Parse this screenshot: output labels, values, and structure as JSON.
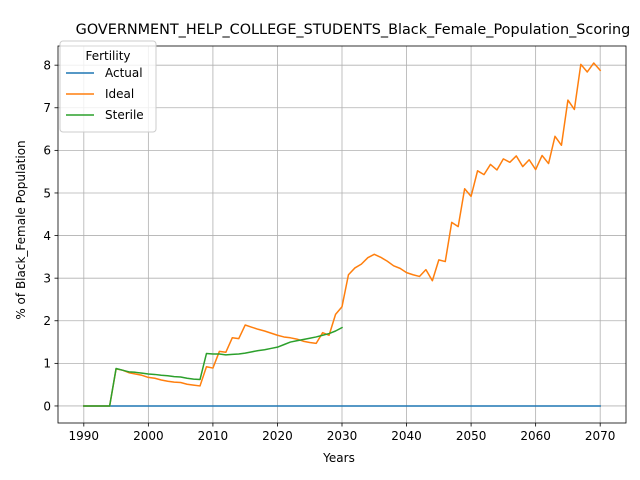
{
  "chart_data": {
    "type": "line",
    "title": "GOVERNMENT_HELP_COLLEGE_STUDENTS_Black_Female_Population_Scoring",
    "xlabel": "Years",
    "ylabel": "% of Black_Female Population",
    "xlim": [
      1986,
      2074
    ],
    "ylim": [
      -0.4,
      8.45
    ],
    "xticks": [
      1990,
      2000,
      2010,
      2020,
      2030,
      2040,
      2050,
      2060,
      2070
    ],
    "yticks": [
      0,
      1,
      2,
      3,
      4,
      5,
      6,
      7,
      8
    ],
    "grid": true,
    "legend": {
      "title": "Fertility",
      "location": "top-left"
    },
    "series": [
      {
        "name": "Actual",
        "color": "#1f77b4",
        "x": [
          1990,
          2070
        ],
        "y": [
          0,
          0
        ]
      },
      {
        "name": "Ideal",
        "color": "#ff7f0e",
        "x": [
          1990,
          1991,
          1992,
          1993,
          1994,
          1995,
          1996,
          1997,
          1998,
          1999,
          2000,
          2001,
          2002,
          2003,
          2004,
          2005,
          2006,
          2007,
          2008,
          2009,
          2010,
          2011,
          2012,
          2013,
          2014,
          2015,
          2016,
          2017,
          2018,
          2019,
          2020,
          2021,
          2022,
          2023,
          2024,
          2025,
          2026,
          2027,
          2028,
          2029,
          2030,
          2031,
          2032,
          2033,
          2034,
          2035,
          2036,
          2037,
          2038,
          2039,
          2040,
          2041,
          2042,
          2043,
          2044,
          2045,
          2046,
          2047,
          2048,
          2049,
          2050,
          2051,
          2052,
          2053,
          2054,
          2055,
          2056,
          2057,
          2058,
          2059,
          2060,
          2061,
          2062,
          2063,
          2064,
          2065,
          2066,
          2067,
          2068,
          2069,
          2070
        ],
        "y": [
          0,
          0,
          0,
          0,
          0,
          0.87,
          0.84,
          0.78,
          0.75,
          0.72,
          0.67,
          0.65,
          0.61,
          0.58,
          0.56,
          0.55,
          0.51,
          0.49,
          0.47,
          0.92,
          0.89,
          1.28,
          1.26,
          1.6,
          1.58,
          1.9,
          1.85,
          1.8,
          1.76,
          1.71,
          1.66,
          1.62,
          1.6,
          1.57,
          1.52,
          1.49,
          1.47,
          1.72,
          1.66,
          2.15,
          2.33,
          3.08,
          3.24,
          3.33,
          3.48,
          3.56,
          3.49,
          3.4,
          3.29,
          3.23,
          3.13,
          3.08,
          3.04,
          3.2,
          2.94,
          3.43,
          3.39,
          4.31,
          4.21,
          5.1,
          4.92,
          5.52,
          5.43,
          5.67,
          5.54,
          5.8,
          5.72,
          5.87,
          5.62,
          5.78,
          5.55,
          5.88,
          5.69,
          6.33,
          6.12,
          7.18,
          6.96,
          8.02,
          7.84,
          8.05,
          7.88
        ]
      },
      {
        "name": "Sterile",
        "color": "#2ca02c",
        "x": [
          1990,
          1991,
          1992,
          1993,
          1994,
          1995,
          1996,
          1997,
          1998,
          1999,
          2000,
          2001,
          2002,
          2003,
          2004,
          2005,
          2006,
          2007,
          2008,
          2009,
          2010,
          2011,
          2012,
          2013,
          2014,
          2015,
          2016,
          2017,
          2018,
          2019,
          2020,
          2021,
          2022,
          2023,
          2024,
          2025,
          2026,
          2027,
          2028,
          2029,
          2030
        ],
        "y": [
          0,
          0,
          0,
          0,
          0,
          0.88,
          0.84,
          0.8,
          0.79,
          0.77,
          0.75,
          0.74,
          0.72,
          0.71,
          0.69,
          0.68,
          0.65,
          0.63,
          0.62,
          1.23,
          1.22,
          1.22,
          1.2,
          1.21,
          1.22,
          1.24,
          1.27,
          1.3,
          1.32,
          1.35,
          1.38,
          1.44,
          1.5,
          1.53,
          1.56,
          1.59,
          1.62,
          1.66,
          1.7,
          1.76,
          1.84
        ]
      }
    ]
  }
}
